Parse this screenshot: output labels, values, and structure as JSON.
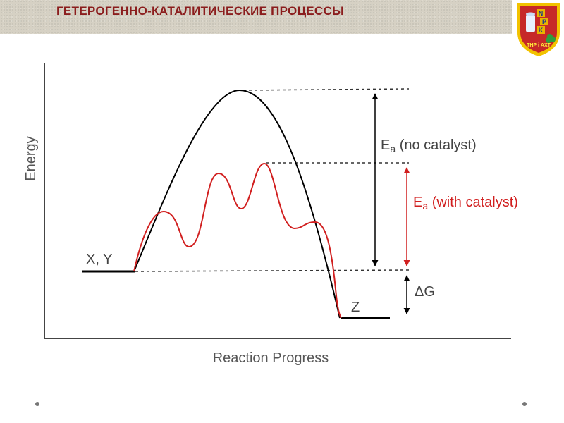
{
  "header": {
    "title": "ГЕТЕРОГЕННО-КАТАЛИТИЧЕСКИЕ ПРОЦЕССЫ"
  },
  "logo": {
    "letters": [
      "N",
      "P",
      "K"
    ],
    "caption": "ТНР і АХТ",
    "colors": {
      "shield": "#c62828",
      "border": "#f2c200",
      "tile": "#e8b400"
    }
  },
  "diagram": {
    "y_axis_label": "Energy",
    "x_axis_label": "Reaction Progress",
    "reactants_label": "X, Y",
    "product_label": "Z",
    "ea_no_catalyst": {
      "symbol": "E",
      "subscript": "a",
      "suffix": " (no catalyst)"
    },
    "ea_with_catalyst": {
      "symbol": "E",
      "subscript": "a",
      "suffix": " (with catalyst)"
    },
    "delta_g_label": "ΔG",
    "colors": {
      "uncatalyzed": "#000000",
      "catalyzed": "#d11f1f",
      "dashed": "#333333"
    },
    "catalyzed_humps": 4,
    "uncatalyzed_humps": 1
  }
}
